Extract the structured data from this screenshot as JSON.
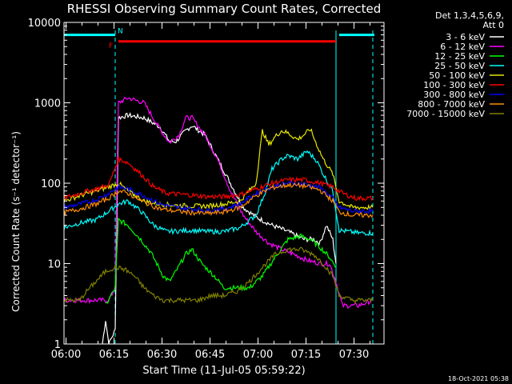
{
  "chart_data": {
    "type": "line",
    "title": "RHESSI Observing Summary Count Rates, Corrected",
    "xlabel": "Start Time (11-Jul-05 05:59:22)",
    "ylabel": "Corrected Count Rate (s⁻¹ detector⁻¹)",
    "yscale": "log",
    "xlim": [
      0,
      100
    ],
    "ylim": [
      1,
      10000
    ],
    "x_unit": "minutes from 05:59:22",
    "x_ticks": [
      {
        "x": 0.63,
        "label": "06:00"
      },
      {
        "x": 15.63,
        "label": "06:15"
      },
      {
        "x": 30.63,
        "label": "06:30"
      },
      {
        "x": 45.63,
        "label": "06:45"
      },
      {
        "x": 60.63,
        "label": "07:00"
      },
      {
        "x": 75.63,
        "label": "07:15"
      },
      {
        "x": 90.63,
        "label": "07:30"
      }
    ],
    "y_ticks": [
      {
        "y": 1,
        "label": "1"
      },
      {
        "y": 10,
        "label": "10"
      },
      {
        "y": 100,
        "label": "100"
      },
      {
        "y": 1000,
        "label": "1000"
      },
      {
        "y": 10000,
        "label": "10000"
      }
    ],
    "legend": {
      "position": "top-right",
      "header": [
        "Det 1,3,4,5,6,9,",
        "Att 0"
      ],
      "entries": [
        {
          "label": "3 - 6 keV",
          "color": "#ffffff"
        },
        {
          "label": "6 - 12 keV",
          "color": "#ff00ff"
        },
        {
          "label": "12 - 25 keV",
          "color": "#00ff00"
        },
        {
          "label": "25 - 50 keV",
          "color": "#00ffff"
        },
        {
          "label": "50 - 100 keV",
          "color": "#e6e600"
        },
        {
          "label": "100 - 300 keV",
          "color": "#ff0000"
        },
        {
          "label": "300 - 800 keV",
          "color": "#0000ff"
        },
        {
          "label": "800 - 7000 keV",
          "color": "#ff8c00"
        },
        {
          "label": "7000 - 15000 keV",
          "color": "#808000"
        }
      ]
    },
    "flags": {
      "flare_label": "F",
      "flare_range": [
        17,
        85
      ],
      "flare_color": "#ff0000",
      "night_label": "N",
      "night_ranges": [
        [
          0,
          16
        ],
        [
          86,
          97
        ]
      ],
      "night_color": "#00ffff",
      "night_level": 7000,
      "flare_level": 5800
    },
    "boundaries": [
      {
        "x": 16.0,
        "color": "#00ffff",
        "style": "dashed"
      },
      {
        "x": 85.0,
        "color": "#00ffff",
        "style": "solid"
      },
      {
        "x": 96.5,
        "color": "#00ffff",
        "style": "dashed"
      }
    ],
    "series": [
      {
        "name": "3 - 6 keV",
        "color": "#ffffff",
        "points": [
          [
            12,
            1
          ],
          [
            13,
            2
          ],
          [
            14,
            1
          ],
          [
            16,
            1.5
          ],
          [
            17,
            650
          ],
          [
            20,
            700
          ],
          [
            25,
            650
          ],
          [
            30,
            500
          ],
          [
            33,
            330
          ],
          [
            35,
            330
          ],
          [
            38,
            450
          ],
          [
            40,
            520
          ],
          [
            44,
            400
          ],
          [
            48,
            200
          ],
          [
            52,
            100
          ],
          [
            56,
            50
          ],
          [
            60,
            38
          ],
          [
            65,
            30
          ],
          [
            70,
            25
          ],
          [
            75,
            20
          ],
          [
            78,
            20
          ],
          [
            80,
            18
          ],
          [
            82,
            30
          ],
          [
            84,
            20
          ],
          [
            85,
            10
          ]
        ]
      },
      {
        "name": "6 - 12 keV",
        "color": "#ff00ff",
        "points": [
          [
            0,
            3.5
          ],
          [
            10,
            3.5
          ],
          [
            14,
            3.5
          ],
          [
            16,
            5
          ],
          [
            17,
            1000
          ],
          [
            20,
            1150
          ],
          [
            25,
            1000
          ],
          [
            30,
            470
          ],
          [
            33,
            320
          ],
          [
            36,
            400
          ],
          [
            38,
            650
          ],
          [
            40,
            650
          ],
          [
            44,
            400
          ],
          [
            48,
            200
          ],
          [
            52,
            80
          ],
          [
            56,
            40
          ],
          [
            60,
            25
          ],
          [
            64,
            18
          ],
          [
            68,
            15
          ],
          [
            72,
            13
          ],
          [
            76,
            11
          ],
          [
            80,
            10
          ],
          [
            83,
            10
          ],
          [
            85,
            6
          ],
          [
            87,
            3
          ],
          [
            92,
            3
          ],
          [
            96.5,
            3.5
          ]
        ]
      },
      {
        "name": "12 - 25 keV",
        "color": "#00ff00",
        "points": [
          [
            13,
            3
          ],
          [
            16,
            5
          ],
          [
            17,
            35
          ],
          [
            20,
            30
          ],
          [
            24,
            20
          ],
          [
            27,
            14
          ],
          [
            29,
            10
          ],
          [
            31,
            7
          ],
          [
            33,
            6
          ],
          [
            35,
            8
          ],
          [
            38,
            13
          ],
          [
            40,
            15
          ],
          [
            43,
            10
          ],
          [
            47,
            7
          ],
          [
            50,
            5
          ],
          [
            54,
            5
          ],
          [
            58,
            5
          ],
          [
            62,
            7
          ],
          [
            66,
            12
          ],
          [
            70,
            20
          ],
          [
            74,
            22
          ],
          [
            77,
            20
          ],
          [
            80,
            16
          ],
          [
            83,
            12
          ],
          [
            85,
            9
          ]
        ]
      },
      {
        "name": "25 - 50 keV",
        "color": "#00ffff",
        "points": [
          [
            0,
            28
          ],
          [
            5,
            32
          ],
          [
            10,
            35
          ],
          [
            14,
            45
          ],
          [
            17,
            55
          ],
          [
            20,
            60
          ],
          [
            24,
            45
          ],
          [
            28,
            30
          ],
          [
            32,
            25
          ],
          [
            40,
            26
          ],
          [
            45,
            25
          ],
          [
            50,
            25
          ],
          [
            55,
            28
          ],
          [
            60,
            40
          ],
          [
            63,
            80
          ],
          [
            65,
            150
          ],
          [
            68,
            200
          ],
          [
            70,
            220
          ],
          [
            73,
            200
          ],
          [
            76,
            250
          ],
          [
            79,
            190
          ],
          [
            81,
            130
          ],
          [
            84,
            80
          ],
          [
            86,
            26
          ],
          [
            92,
            24
          ],
          [
            96.5,
            24
          ]
        ]
      },
      {
        "name": "50 - 100 keV",
        "color": "#e6e600",
        "points": [
          [
            0,
            60
          ],
          [
            5,
            70
          ],
          [
            10,
            80
          ],
          [
            14,
            90
          ],
          [
            17,
            100
          ],
          [
            20,
            80
          ],
          [
            25,
            60
          ],
          [
            30,
            55
          ],
          [
            35,
            53
          ],
          [
            40,
            52
          ],
          [
            45,
            52
          ],
          [
            50,
            55
          ],
          [
            55,
            60
          ],
          [
            60,
            100
          ],
          [
            62,
            450
          ],
          [
            64,
            300
          ],
          [
            66,
            380
          ],
          [
            68,
            450
          ],
          [
            70,
            420
          ],
          [
            73,
            350
          ],
          [
            75,
            400
          ],
          [
            77,
            470
          ],
          [
            79,
            300
          ],
          [
            81,
            200
          ],
          [
            84,
            130
          ],
          [
            86,
            60
          ],
          [
            90,
            50
          ],
          [
            96.5,
            50
          ]
        ]
      },
      {
        "name": "100 - 300 keV",
        "color": "#ff0000",
        "points": [
          [
            0,
            65
          ],
          [
            5,
            75
          ],
          [
            10,
            85
          ],
          [
            14,
            95
          ],
          [
            17,
            200
          ],
          [
            20,
            180
          ],
          [
            24,
            130
          ],
          [
            28,
            90
          ],
          [
            32,
            75
          ],
          [
            38,
            72
          ],
          [
            45,
            68
          ],
          [
            50,
            68
          ],
          [
            55,
            72
          ],
          [
            60,
            85
          ],
          [
            65,
            100
          ],
          [
            70,
            110
          ],
          [
            75,
            110
          ],
          [
            80,
            100
          ],
          [
            84,
            90
          ],
          [
            87,
            75
          ],
          [
            91,
            65
          ],
          [
            96.5,
            65
          ]
        ]
      },
      {
        "name": "300 - 800 keV",
        "color": "#0000ff",
        "points": [
          [
            0,
            50
          ],
          [
            5,
            55
          ],
          [
            10,
            62
          ],
          [
            14,
            75
          ],
          [
            17,
            90
          ],
          [
            20,
            85
          ],
          [
            25,
            70
          ],
          [
            30,
            55
          ],
          [
            35,
            50
          ],
          [
            40,
            48
          ],
          [
            45,
            46
          ],
          [
            50,
            48
          ],
          [
            55,
            55
          ],
          [
            60,
            75
          ],
          [
            65,
            90
          ],
          [
            70,
            100
          ],
          [
            75,
            98
          ],
          [
            80,
            88
          ],
          [
            84,
            65
          ],
          [
            86,
            50
          ],
          [
            90,
            45
          ],
          [
            96.5,
            45
          ]
        ]
      },
      {
        "name": "800 - 7000 keV",
        "color": "#ff8c00",
        "points": [
          [
            0,
            43
          ],
          [
            5,
            48
          ],
          [
            10,
            55
          ],
          [
            14,
            65
          ],
          [
            17,
            80
          ],
          [
            20,
            75
          ],
          [
            25,
            58
          ],
          [
            30,
            48
          ],
          [
            35,
            45
          ],
          [
            40,
            43
          ],
          [
            45,
            42
          ],
          [
            50,
            44
          ],
          [
            55,
            50
          ],
          [
            60,
            70
          ],
          [
            65,
            88
          ],
          [
            70,
            95
          ],
          [
            75,
            93
          ],
          [
            80,
            82
          ],
          [
            84,
            60
          ],
          [
            86,
            44
          ],
          [
            90,
            40
          ],
          [
            96.5,
            40
          ]
        ]
      },
      {
        "name": "7000 - 15000 keV",
        "color": "#808000",
        "points": [
          [
            0,
            3.5
          ],
          [
            3,
            3.5
          ],
          [
            5,
            3.5
          ],
          [
            7,
            4.5
          ],
          [
            10,
            6
          ],
          [
            13,
            8
          ],
          [
            16,
            9
          ],
          [
            19,
            8.5
          ],
          [
            22,
            7
          ],
          [
            25,
            5
          ],
          [
            28,
            4
          ],
          [
            31,
            3.5
          ],
          [
            34,
            3.5
          ],
          [
            38,
            3.5
          ],
          [
            42,
            3.5
          ],
          [
            46,
            4
          ],
          [
            50,
            4
          ],
          [
            54,
            4.5
          ],
          [
            58,
            6
          ],
          [
            62,
            9
          ],
          [
            66,
            13
          ],
          [
            70,
            15
          ],
          [
            74,
            15
          ],
          [
            78,
            13
          ],
          [
            81,
            10
          ],
          [
            84,
            7
          ],
          [
            86,
            4
          ],
          [
            90,
            3.5
          ],
          [
            96.5,
            3.5
          ]
        ]
      }
    ]
  },
  "footer": {
    "date_stamp": "18-Oct-2021 05:38"
  }
}
